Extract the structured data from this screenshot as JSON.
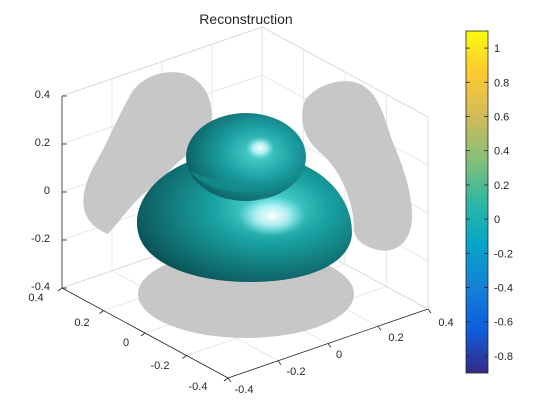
{
  "chart_data": {
    "type": "surface3d",
    "title": "Reconstruction",
    "xlabel": "",
    "ylabel": "",
    "zlabel": "",
    "x_ticks": [
      "-0.4",
      "-0.2",
      "0",
      "0.2",
      "0.4"
    ],
    "y_ticks": [
      "-0.4",
      "-0.2",
      "0",
      "0.2",
      "0.4"
    ],
    "z_ticks": [
      "-0.4",
      "-0.2",
      "0",
      "0.2",
      "0.4"
    ],
    "xlim": [
      -0.4,
      0.4
    ],
    "ylim": [
      -0.4,
      0.4
    ],
    "zlim": [
      -0.4,
      0.4
    ],
    "grid": true,
    "surface_color": "#1aa3a3",
    "shadow_color": "#bdbdbd",
    "colorbar": {
      "ticks": [
        "1",
        "0.8",
        "0.6",
        "0.4",
        "0.2",
        "0",
        "-0.2",
        "-0.4",
        "-0.6",
        "-0.8"
      ],
      "range": [
        -0.9,
        1.1
      ],
      "colormap": "parula"
    }
  }
}
